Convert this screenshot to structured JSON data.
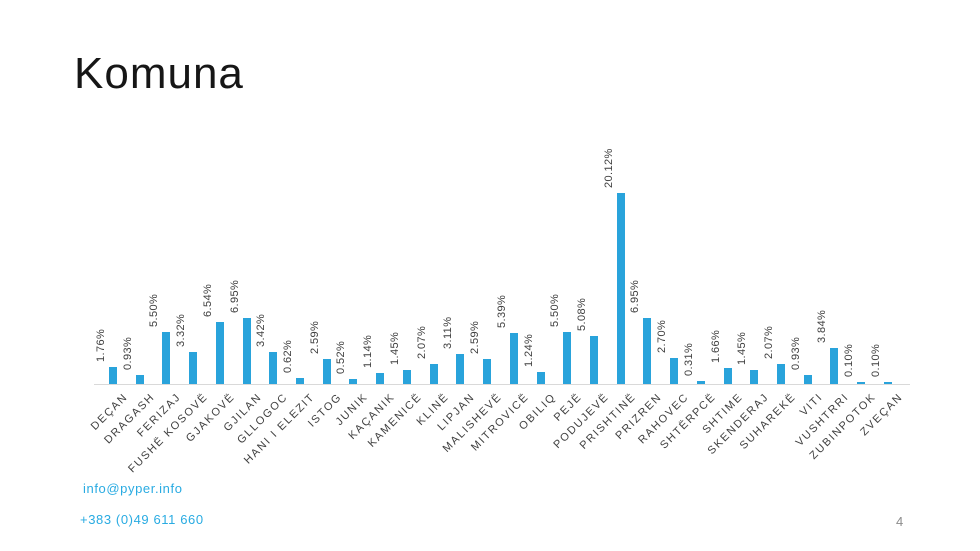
{
  "slide": {
    "title": "Komuna",
    "page_number": "4",
    "footer": {
      "email": "info@pyper.info",
      "phone": "+383 (0)49 611 660",
      "link_color": "#29ABE2"
    }
  },
  "chart_data": {
    "type": "bar",
    "title": "Komuna",
    "xlabel": "",
    "ylabel": "",
    "ylim": [
      0,
      21
    ],
    "grid": false,
    "legend": false,
    "bar_color": "#29A3DB",
    "value_label_color": "#404040",
    "category_label_color": "#404040",
    "axis_line_color": "#D9D9D9",
    "categories": [
      "DEÇAN",
      "DRAGASH",
      "FERIZAJ",
      "FUSHË KOSOVË",
      "GJAKOVË",
      "GJILAN",
      "GLLOGOC",
      "HANI I ELEZIT",
      "ISTOG",
      "JUNIK",
      "KAÇANIK",
      "KAMENICË",
      "KLINË",
      "LIPJAN",
      "MALISHEVË",
      "MITROVICË",
      "OBILIQ",
      "PEJË",
      "PODUJEVË",
      "PRISHTINË",
      "PRIZREN",
      "RAHOVEC",
      "SHTËRPCË",
      "SHTIME",
      "SKENDERAJ",
      "SUHAREKË",
      "VITI",
      "VUSHTRRI",
      "ZUBINPOTOK",
      "ZVEÇAN"
    ],
    "values": [
      1.76,
      0.93,
      5.5,
      3.32,
      6.54,
      6.95,
      3.42,
      0.62,
      2.59,
      0.52,
      1.14,
      1.45,
      2.07,
      3.11,
      2.59,
      5.39,
      1.24,
      5.5,
      5.08,
      20.12,
      6.95,
      2.7,
      0.31,
      1.66,
      1.45,
      2.07,
      0.93,
      3.84,
      0.1,
      0.1
    ],
    "value_labels": [
      "1.76%",
      "0.93%",
      "5.50%",
      "3.32%",
      "6.54%",
      "6.95%",
      "3.42%",
      "0.62%",
      "2.59%",
      "0.52%",
      "1.14%",
      "1.45%",
      "2.07%",
      "3.11%",
      "2.59%",
      "5.39%",
      "1.24%",
      "5.50%",
      "5.08%",
      "20.12%",
      "6.95%",
      "2.70%",
      "0.31%",
      "1.66%",
      "1.45%",
      "2.07%",
      "0.93%",
      "3.84%",
      "0.10%",
      "0.10%"
    ]
  }
}
